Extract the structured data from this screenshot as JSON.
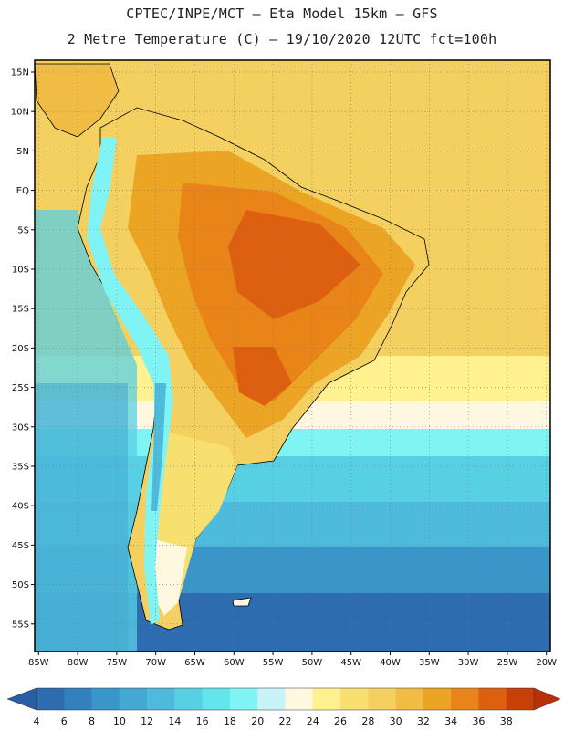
{
  "title": {
    "line1": "CPTEC/INPE/MCT –  Eta Model 15km – GFS",
    "line2": "2 Metre Temperature (C) – 19/10/2020 12UTC fct=100h"
  },
  "map": {
    "lat_labels": [
      "15N",
      "10N",
      "5N",
      "EQ",
      "5S",
      "10S",
      "15S",
      "20S",
      "25S",
      "30S",
      "35S",
      "40S",
      "45S",
      "50S",
      "55S"
    ],
    "lat_values": [
      15,
      10,
      5,
      0,
      -5,
      -10,
      -15,
      -20,
      -25,
      -30,
      -35,
      -40,
      -45,
      -50,
      -55
    ],
    "lon_labels": [
      "85W",
      "80W",
      "75W",
      "70W",
      "65W",
      "60W",
      "55W",
      "50W",
      "45W",
      "40W",
      "35W",
      "30W",
      "25W",
      "20W"
    ],
    "lon_values": [
      -85,
      -80,
      -75,
      -70,
      -65,
      -60,
      -55,
      -50,
      -45,
      -40,
      -35,
      -30,
      -25,
      -20
    ],
    "extent": {
      "lon_min": -85.5,
      "lon_max": -19.5,
      "lat_min": -58.5,
      "lat_max": 16.5
    }
  },
  "colorbar": {
    "labels": [
      "4",
      "6",
      "8",
      "10",
      "12",
      "14",
      "16",
      "18",
      "20",
      "22",
      "24",
      "26",
      "28",
      "30",
      "32",
      "34",
      "36",
      "38"
    ],
    "colors": [
      "#2e6cb0",
      "#3380be",
      "#3a95c8",
      "#44a8d2",
      "#4ebbdc",
      "#58d0e4",
      "#62e6ec",
      "#80f4f4",
      "#c8f4f8",
      "#fff8e0",
      "#fff090",
      "#f8e070",
      "#f4d060",
      "#f0bc44",
      "#eca424",
      "#e88418",
      "#dc6010",
      "#c84008"
    ],
    "left_arrow_color": "#2a5ea4",
    "right_arrow_color": "#b83008"
  }
}
